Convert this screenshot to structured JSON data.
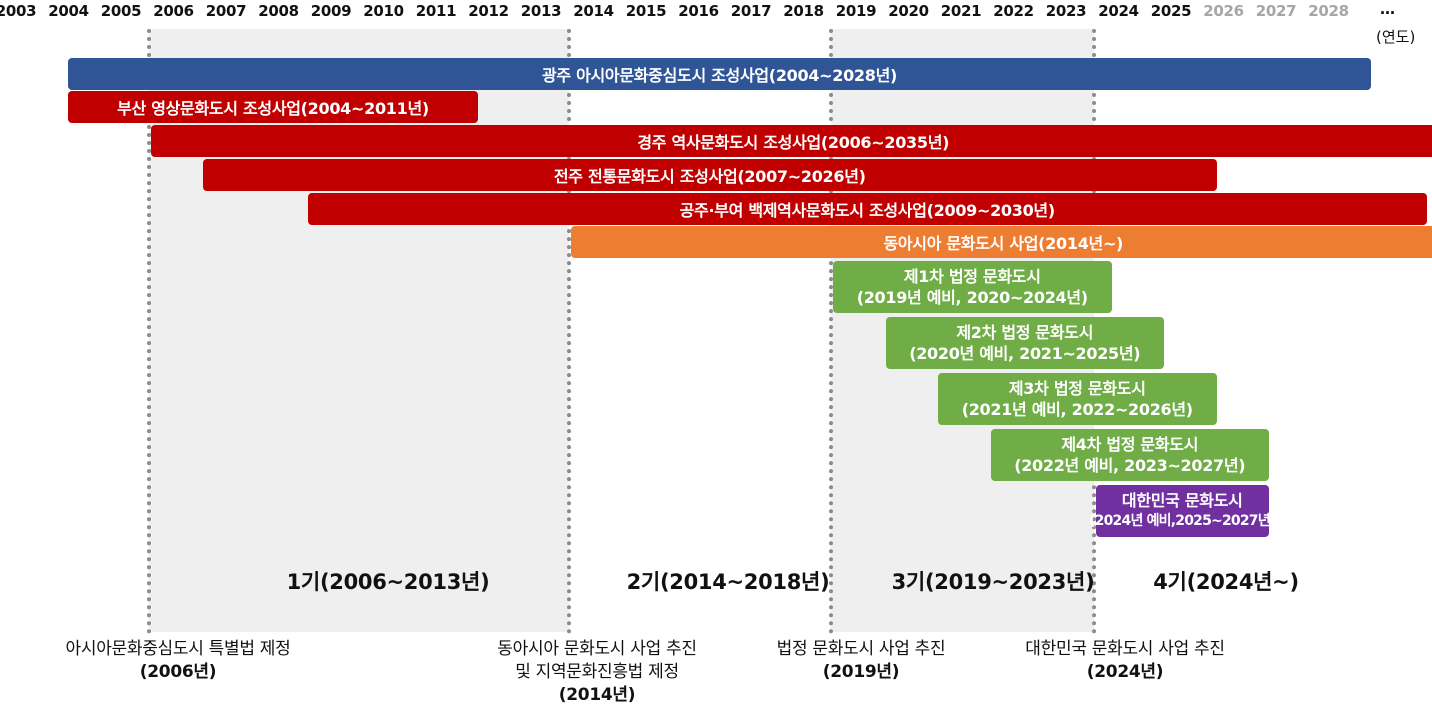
{
  "timeline": {
    "years": [
      "2003",
      "2004",
      "2005",
      "2006",
      "2007",
      "2008",
      "2009",
      "2010",
      "2011",
      "2012",
      "2013",
      "2014",
      "2015",
      "2016",
      "2017",
      "2018",
      "2019",
      "2020",
      "2021",
      "2022",
      "2023",
      "2024",
      "2025",
      "2026",
      "2027",
      "2028"
    ],
    "future_from": "2026",
    "ellipsis": "…",
    "unit_label": "(연도)"
  },
  "colors": {
    "blue": "#2f5597",
    "red": "#c00000",
    "orange": "#ed7d31",
    "green": "#70ad47",
    "purple": "#7030a0",
    "shade": "#efefef"
  },
  "bars": [
    {
      "label": "광주 아시아문화중심도시 조성사업(2004~2028년)",
      "start": 2004,
      "end": 2028,
      "color": "blue"
    },
    {
      "label": "부산 영상문화도시 조성사업(2004~2011년)",
      "start": 2004,
      "end": 2011,
      "color": "red"
    },
    {
      "label": "경주 역사문화도시 조성사업(2006~2035년)",
      "start": 2006,
      "end": 2035,
      "color": "red"
    },
    {
      "label": "전주 전통문화도시 조성사업(2007~2026년)",
      "start": 2007,
      "end": 2026,
      "color": "red"
    },
    {
      "label": "공주·부여 백제역사문화도시 조성사업(2009~2030년)",
      "start": 2009,
      "end": 2030,
      "color": "red"
    },
    {
      "label": "동아시아 문화도시 사업(2014년~)",
      "start": 2014,
      "end": 2035,
      "color": "orange"
    },
    {
      "label": "제1차 법정 문화도시",
      "sublabel": "(2019년 예비, 2020~2024년)",
      "start": 2019,
      "end": 2024,
      "color": "green"
    },
    {
      "label": "제2차 법정 문화도시",
      "sublabel": "(2020년 예비, 2021~2025년)",
      "start": 2020,
      "end": 2025,
      "color": "green"
    },
    {
      "label": "제3차 법정 문화도시",
      "sublabel": "(2021년 예비, 2022~2026년)",
      "start": 2021,
      "end": 2026,
      "color": "green"
    },
    {
      "label": "제4차 법정 문화도시",
      "sublabel": "(2022년 예비, 2023~2027년)",
      "start": 2022,
      "end": 2027,
      "color": "green"
    },
    {
      "label": "대한민국 문화도시",
      "sublabel": "(2024년 예비,2025~2027년)",
      "start": 2024,
      "end": 2027,
      "color": "purple"
    }
  ],
  "periods": [
    {
      "label": "1기(2006~2013년)",
      "start": 2006,
      "end": 2014,
      "shaded": true
    },
    {
      "label": "2기(2014~2018년)",
      "start": 2014,
      "end": 2019,
      "shaded": false
    },
    {
      "label": "3기(2019~2023년)",
      "start": 2019,
      "end": 2024,
      "shaded": true
    },
    {
      "label": "4기(2024년~)",
      "start": 2024,
      "end": 2027,
      "shaded": false
    }
  ],
  "milestones": [
    {
      "year": 2006,
      "lines": [
        "아시아문화중심도시 특별법 제정"
      ],
      "date": "(2006년)"
    },
    {
      "year": 2014,
      "lines": [
        "동아시아 문화도시 사업 추진",
        "및 지역문화진흥법 제정"
      ],
      "date": "(2014년)"
    },
    {
      "year": 2019,
      "lines": [
        "법정 문화도시 사업 추진"
      ],
      "date": "(2019년)"
    },
    {
      "year": 2024,
      "lines": [
        "대한민국 문화도시 사업 추진"
      ],
      "date": "(2024년)"
    }
  ]
}
